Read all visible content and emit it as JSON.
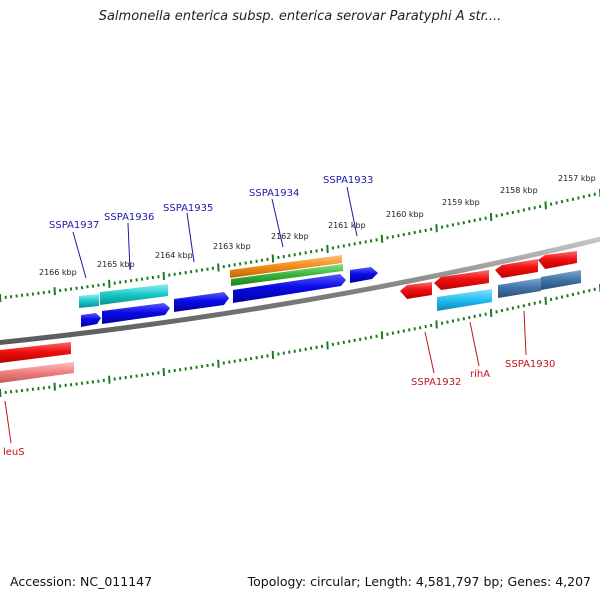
{
  "title": "Salmonella enterica subsp. enterica serovar Paratyphi A str....",
  "footer": {
    "accession": "Accession: NC_011147",
    "summary": "Topology: circular; Length: 4,581,797 bp; Genes: 4,207"
  },
  "ruler_labels": [
    "2157 kbp",
    "2158 kbp",
    "2159 kbp",
    "2160 kbp",
    "2161 kbp",
    "2162 kbp",
    "2163 kbp",
    "2164 kbp",
    "2165 kbp",
    "2166 kbp"
  ],
  "genes_top": [
    {
      "name": "SSPA1937",
      "color": "#1a1aa8"
    },
    {
      "name": "SSPA1936",
      "color": "#1a1aa8"
    },
    {
      "name": "SSPA1935",
      "color": "#1a1aa8"
    },
    {
      "name": "SSPA1934",
      "color": "#1a1aa8"
    },
    {
      "name": "SSPA1933",
      "color": "#1a1aa8"
    }
  ],
  "genes_bottom": [
    {
      "name": "SSPA1932",
      "color": "#c0141e"
    },
    {
      "name": "rihA",
      "color": "#c0141e"
    },
    {
      "name": "SSPA1930",
      "color": "#c0141e"
    },
    {
      "name": "leuS",
      "color": "#c0141e"
    }
  ],
  "colors": {
    "backbone": "#808080",
    "tick": "#1f7a1f",
    "forward_cds": "#0a0ae6",
    "reverse_cds": "#ee1111",
    "cyan": "#19c7c7",
    "orange": "#f28c18",
    "green": "#36b436",
    "light_blue": "#22bdf0",
    "steel_blue": "#3f73a8",
    "pink": "#ef7f7f"
  }
}
